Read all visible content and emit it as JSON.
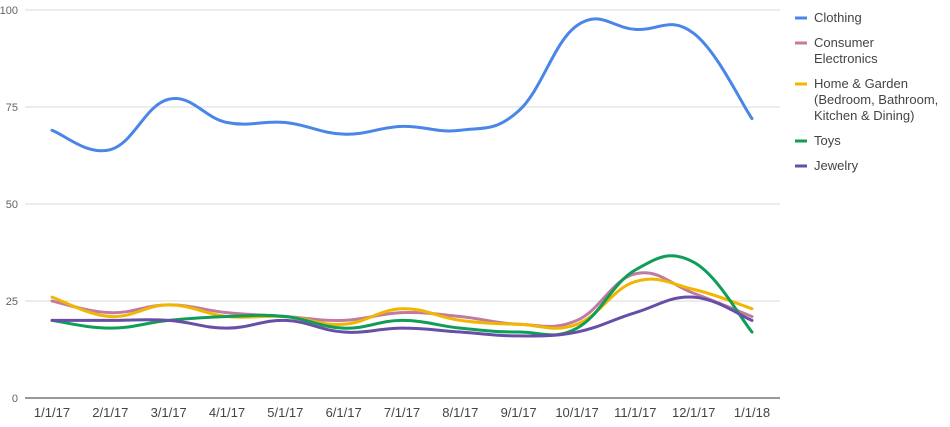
{
  "chart_data": {
    "type": "line",
    "title": "",
    "xlabel": "",
    "ylabel": "",
    "ylim": [
      0,
      100
    ],
    "yticks": [
      0,
      25,
      50,
      75,
      100
    ],
    "categories": [
      "1/1/17",
      "2/1/17",
      "3/1/17",
      "4/1/17",
      "5/1/17",
      "6/1/17",
      "7/1/17",
      "8/1/17",
      "9/1/17",
      "10/1/17",
      "11/1/17",
      "12/1/17",
      "1/1/18"
    ],
    "grid": true,
    "legend_position": "right",
    "series": [
      {
        "name": "Clothing",
        "color": "#4a86e8",
        "values": [
          69,
          64,
          77,
          71,
          71,
          68,
          70,
          69,
          74,
          96,
          95,
          94,
          72
        ]
      },
      {
        "name": "Consumer Electronics",
        "color": "#c27ba0",
        "values": [
          25,
          22,
          24,
          22,
          21,
          20,
          22,
          21,
          19,
          20,
          32,
          27,
          21
        ]
      },
      {
        "name": "Home & Garden (Bedroom, Bathroom, Kitchen & Dining)",
        "color": "#f1b600",
        "values": [
          26,
          21,
          24,
          21,
          21,
          19,
          23,
          20,
          19,
          19,
          30,
          28,
          23
        ]
      },
      {
        "name": "Toys",
        "color": "#0f9d58",
        "values": [
          20,
          18,
          20,
          21,
          21,
          18,
          20,
          18,
          17,
          18,
          33,
          35,
          17
        ]
      },
      {
        "name": "Jewelry",
        "color": "#674ea7",
        "values": [
          20,
          20,
          20,
          18,
          20,
          17,
          18,
          17,
          16,
          17,
          22,
          26,
          20
        ]
      }
    ],
    "legend": [
      {
        "lines": [
          "Clothing"
        ]
      },
      {
        "lines": [
          "Consumer",
          "Electronics"
        ]
      },
      {
        "lines": [
          "Home & Garden",
          "(Bedroom, Bathroom,",
          "Kitchen & Dining)"
        ]
      },
      {
        "lines": [
          "Toys"
        ]
      },
      {
        "lines": [
          "Jewelry"
        ]
      }
    ]
  }
}
